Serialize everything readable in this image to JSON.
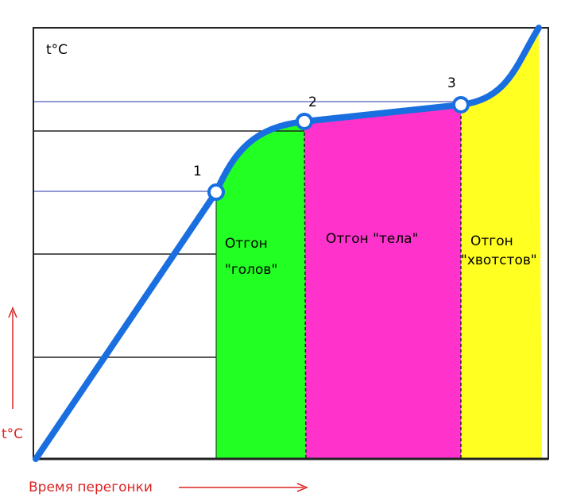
{
  "axis": {
    "y_label": "t°C",
    "y_arrow_label": "t°C",
    "x_arrow_label": "Время перегонки"
  },
  "points": [
    {
      "label": "1"
    },
    {
      "label": "2"
    },
    {
      "label": "3"
    }
  ],
  "regions": [
    {
      "label_lines": [
        "Отгон",
        "\"голов\""
      ]
    },
    {
      "label_lines": [
        "Отгон \"тела\""
      ]
    },
    {
      "label_lines": [
        "Отгон",
        "\"хвотстов\""
      ]
    }
  ]
}
